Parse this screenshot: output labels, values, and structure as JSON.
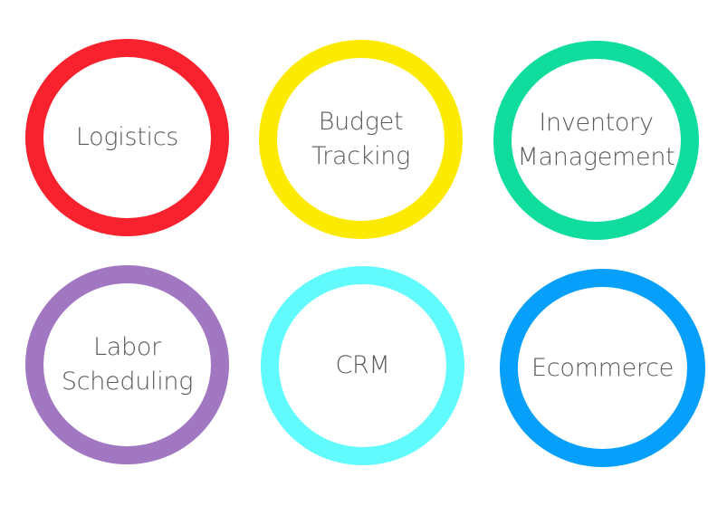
{
  "rings": [
    {
      "lines": [
        "Logistics"
      ],
      "color": "#f8222e"
    },
    {
      "lines": [
        "Budget",
        "Tracking"
      ],
      "color": "#fcea00"
    },
    {
      "lines": [
        "Inventory",
        "Management"
      ],
      "color": "#0fdc9d"
    },
    {
      "lines": [
        "Labor",
        "Scheduling"
      ],
      "color": "#a277c1"
    },
    {
      "lines": [
        "CRM"
      ],
      "color": "#62fbfd"
    },
    {
      "lines": [
        "Ecommerce"
      ],
      "color": "#069ffa"
    }
  ]
}
